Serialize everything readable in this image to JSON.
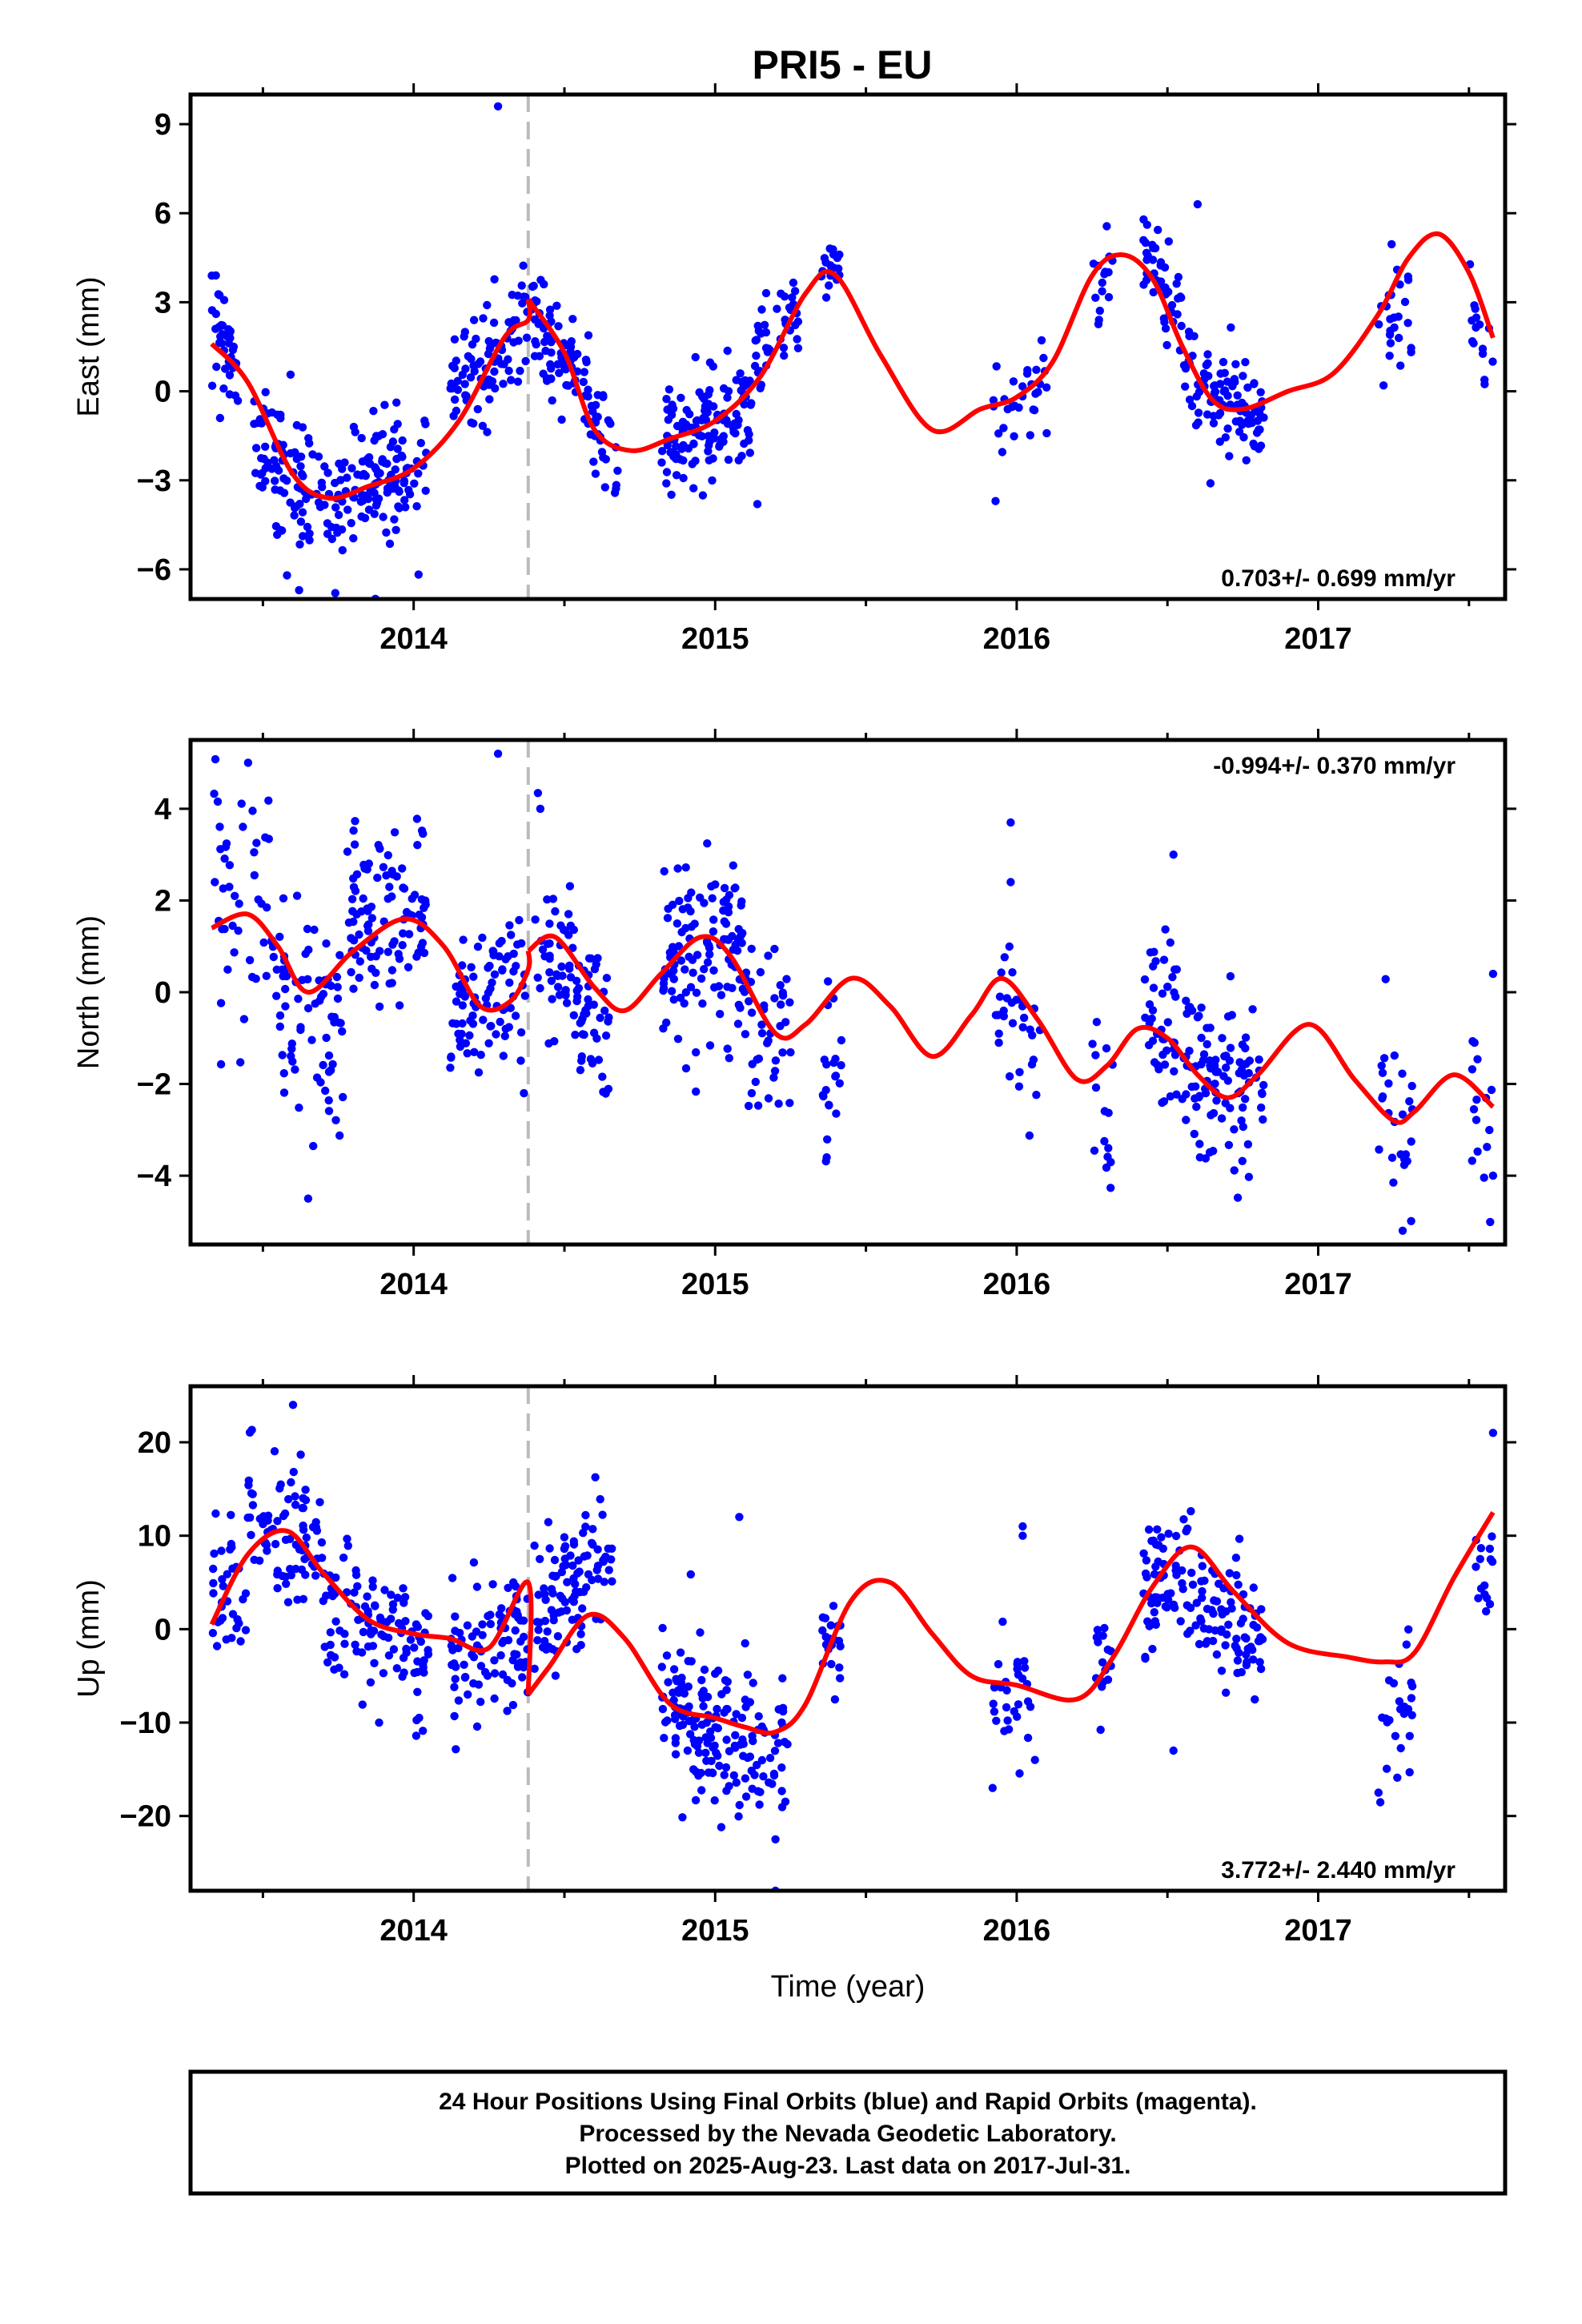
{
  "title": "PRI5 - EU",
  "footer": {
    "line1": "24 Hour Positions Using Final Orbits (blue) and Rapid Orbits (magenta).",
    "line2": "Processed by the Nevada Geodetic Laboratory.",
    "line3": "Plotted on 2025-Aug-23. Last data on 2017-Jul-31."
  },
  "colors": {
    "final_orbits": "#0000ff",
    "model": "#ff0000",
    "event_line": "#bbbbbb"
  },
  "chart_data": [
    {
      "type": "scatter",
      "ylabel": "East (mm)",
      "rate_label": "0.703+/- 0.699 mm/yr",
      "rate_position": "bottom-right",
      "xlim": [
        2013.26,
        2017.62
      ],
      "ylim": [
        -7.0,
        10.0
      ],
      "yticks": [
        9,
        6,
        3,
        0,
        -3,
        -6
      ],
      "xticks": [
        2014,
        2015,
        2016,
        2017
      ],
      "x_tick_labels": [
        "2014",
        "2015",
        "2016",
        "2017"
      ],
      "y_tick_labels": [
        "9",
        "6",
        "3",
        "0",
        "−3",
        "−6"
      ],
      "event_line_x": 2014.38,
      "model": {
        "x": [
          2013.33,
          2013.45,
          2013.6,
          2013.72,
          2013.85,
          2014.0,
          2014.15,
          2014.3,
          2014.38,
          2014.38,
          2014.5,
          2014.6,
          2014.72,
          2014.85,
          2015.0,
          2015.15,
          2015.3,
          2015.4,
          2015.55,
          2015.72,
          2015.88,
          2016.0,
          2016.12,
          2016.25,
          2016.35,
          2016.45,
          2016.55,
          2016.65,
          2016.75,
          2016.9,
          2017.05,
          2017.2,
          2017.3,
          2017.4,
          2017.5,
          2017.58
        ],
        "y": [
          1.6,
          0.3,
          -2.8,
          -3.6,
          -3.2,
          -2.6,
          -1.0,
          1.8,
          2.4,
          3.1,
          1.3,
          -1.3,
          -2.0,
          -1.6,
          -1.0,
          0.5,
          3.3,
          3.9,
          1.2,
          -1.3,
          -0.6,
          -0.2,
          1.0,
          3.9,
          4.6,
          3.8,
          1.5,
          -0.3,
          -0.6,
          0.0,
          0.6,
          2.6,
          4.5,
          5.3,
          4.0,
          1.8
        ]
      },
      "clusters": [
        {
          "x0": 2013.33,
          "x1": 2013.42,
          "y0": 3.0,
          "y1": 0.3,
          "s": 1.0,
          "n": 40
        },
        {
          "x0": 2013.47,
          "x1": 2013.68,
          "y0": -1.5,
          "y1": -3.6,
          "s": 1.1,
          "n": 80
        },
        {
          "x0": 2013.68,
          "x1": 2013.95,
          "y0": -3.6,
          "y1": -2.7,
          "s": 1.0,
          "n": 110
        },
        {
          "x0": 2013.95,
          "x1": 2014.05,
          "y0": -2.6,
          "y1": -2.3,
          "s": 0.9,
          "n": 30
        },
        {
          "x0": 2014.12,
          "x1": 2014.38,
          "y0": 0.0,
          "y1": 2.2,
          "s": 0.9,
          "n": 90
        },
        {
          "x0": 2014.39,
          "x1": 2014.58,
          "y0": 2.8,
          "y1": 0.0,
          "s": 0.9,
          "n": 80
        },
        {
          "x0": 2014.58,
          "x1": 2014.68,
          "y0": -1.0,
          "y1": -2.2,
          "s": 0.8,
          "n": 30
        },
        {
          "x0": 2014.82,
          "x1": 2015.12,
          "y0": -1.8,
          "y1": -0.6,
          "s": 0.9,
          "n": 130
        },
        {
          "x0": 2015.12,
          "x1": 2015.28,
          "y0": 1.0,
          "y1": 3.2,
          "s": 0.8,
          "n": 40
        },
        {
          "x0": 2015.35,
          "x1": 2015.42,
          "y0": 4.2,
          "y1": 4.0,
          "s": 0.6,
          "n": 20
        },
        {
          "x0": 2015.92,
          "x1": 2016.1,
          "y0": -1.0,
          "y1": 0.5,
          "s": 0.9,
          "n": 30
        },
        {
          "x0": 2016.25,
          "x1": 2016.32,
          "y0": 3.4,
          "y1": 4.2,
          "s": 0.8,
          "n": 15
        },
        {
          "x0": 2016.42,
          "x1": 2016.55,
          "y0": 5.0,
          "y1": 2.5,
          "s": 0.8,
          "n": 45
        },
        {
          "x0": 2016.55,
          "x1": 2016.82,
          "y0": 0.5,
          "y1": -1.0,
          "s": 0.8,
          "n": 100
        },
        {
          "x0": 2017.2,
          "x1": 2017.32,
          "y0": 2.0,
          "y1": 3.5,
          "s": 0.8,
          "n": 25
        },
        {
          "x0": 2017.5,
          "x1": 2017.58,
          "y0": 3.5,
          "y1": 0.8,
          "s": 0.8,
          "n": 15
        }
      ],
      "extra_points": [
        [
          2014.28,
          9.6
        ],
        [
          2013.62,
          -6.7
        ],
        [
          2013.58,
          -6.2
        ],
        [
          2013.74,
          -6.8
        ],
        [
          2015.93,
          -3.7
        ],
        [
          2015.14,
          -3.8
        ],
        [
          2016.6,
          6.3
        ]
      ]
    },
    {
      "type": "scatter",
      "ylabel": "North (mm)",
      "rate_label": "-0.994+/- 0.370 mm/yr",
      "rate_position": "top-right",
      "xlim": [
        2013.26,
        2017.62
      ],
      "ylim": [
        -5.5,
        5.5
      ],
      "yticks": [
        4,
        2,
        0,
        -2,
        -4
      ],
      "xticks": [
        2014,
        2015,
        2016,
        2017
      ],
      "x_tick_labels": [
        "2014",
        "2015",
        "2016",
        "2017"
      ],
      "y_tick_labels": [
        "4",
        "2",
        "0",
        "−2",
        "−4"
      ],
      "event_line_x": 2014.38,
      "model": {
        "x": [
          2013.33,
          2013.45,
          2013.55,
          2013.65,
          2013.8,
          2013.97,
          2014.1,
          2014.22,
          2014.32,
          2014.38,
          2014.38,
          2014.47,
          2014.6,
          2014.7,
          2014.82,
          2014.95,
          2015.05,
          2015.2,
          2015.3,
          2015.45,
          2015.58,
          2015.72,
          2015.85,
          2015.95,
          2016.07,
          2016.2,
          2016.3,
          2016.4,
          2016.5,
          2016.6,
          2016.7,
          2016.8,
          2016.97,
          2017.12,
          2017.25,
          2017.32,
          2017.45,
          2017.58
        ],
        "y": [
          1.4,
          1.7,
          1.0,
          0.0,
          0.9,
          1.6,
          1.0,
          -0.3,
          -0.2,
          0.5,
          0.9,
          1.2,
          0.1,
          -0.4,
          0.4,
          1.2,
          0.8,
          -0.9,
          -0.7,
          0.3,
          -0.3,
          -1.4,
          -0.5,
          0.3,
          -0.6,
          -1.9,
          -1.6,
          -0.8,
          -1.0,
          -1.8,
          -2.3,
          -1.8,
          -0.7,
          -1.9,
          -2.8,
          -2.6,
          -1.8,
          -2.5
        ]
      },
      "clusters": [
        {
          "x0": 2013.33,
          "x1": 2013.55,
          "y0": 2.2,
          "y1": 1.0,
          "s": 1.2,
          "n": 50
        },
        {
          "x0": 2013.55,
          "x1": 2013.78,
          "y0": 0.0,
          "y1": -1.2,
          "s": 1.3,
          "n": 70
        },
        {
          "x0": 2013.78,
          "x1": 2014.05,
          "y0": 1.5,
          "y1": 1.8,
          "s": 0.9,
          "n": 100
        },
        {
          "x0": 2014.12,
          "x1": 2014.38,
          "y0": -0.5,
          "y1": 0.2,
          "s": 0.9,
          "n": 90
        },
        {
          "x0": 2014.4,
          "x1": 2014.65,
          "y0": 1.0,
          "y1": -0.8,
          "s": 1.0,
          "n": 90
        },
        {
          "x0": 2014.82,
          "x1": 2015.1,
          "y0": 1.0,
          "y1": 0.9,
          "s": 1.0,
          "n": 120
        },
        {
          "x0": 2015.1,
          "x1": 2015.25,
          "y0": -1.0,
          "y1": -0.5,
          "s": 1.0,
          "n": 40
        },
        {
          "x0": 2015.35,
          "x1": 2015.42,
          "y0": -1.5,
          "y1": -1.8,
          "s": 1.0,
          "n": 20
        },
        {
          "x0": 2015.92,
          "x1": 2016.08,
          "y0": -0.3,
          "y1": -1.2,
          "s": 0.8,
          "n": 30
        },
        {
          "x0": 2016.25,
          "x1": 2016.32,
          "y0": -2.0,
          "y1": -2.8,
          "s": 0.9,
          "n": 15
        },
        {
          "x0": 2016.42,
          "x1": 2016.55,
          "y0": 0.0,
          "y1": -1.2,
          "s": 0.9,
          "n": 45
        },
        {
          "x0": 2016.55,
          "x1": 2016.82,
          "y0": -1.3,
          "y1": -2.3,
          "s": 0.9,
          "n": 100
        },
        {
          "x0": 2017.2,
          "x1": 2017.32,
          "y0": -2.5,
          "y1": -3.0,
          "s": 0.9,
          "n": 25
        },
        {
          "x0": 2017.5,
          "x1": 2017.58,
          "y0": -1.5,
          "y1": -2.2,
          "s": 0.9,
          "n": 15
        }
      ],
      "extra_points": [
        [
          2014.28,
          5.2
        ],
        [
          2013.65,
          -4.5
        ],
        [
          2014.42,
          4.0
        ],
        [
          2015.98,
          3.7
        ],
        [
          2015.98,
          2.4
        ],
        [
          2016.52,
          3.0
        ],
        [
          2017.28,
          -5.2
        ],
        [
          2017.58,
          0.4
        ],
        [
          2017.58,
          -4.0
        ],
        [
          2015.37,
          -3.6
        ]
      ]
    },
    {
      "type": "scatter",
      "ylabel": "Up (mm)",
      "xlabel": "Time (year)",
      "rate_label": "3.772+/- 2.440 mm/yr",
      "rate_position": "bottom-right",
      "xlim": [
        2013.26,
        2017.62
      ],
      "ylim": [
        -28.0,
        26.0
      ],
      "yticks": [
        20,
        10,
        0,
        -10,
        -20
      ],
      "xticks": [
        2014,
        2015,
        2016,
        2017
      ],
      "x_tick_labels": [
        "2014",
        "2015",
        "2016",
        "2017"
      ],
      "y_tick_labels": [
        "20",
        "10",
        "0",
        "−10",
        "−20"
      ],
      "event_line_x": 2014.38,
      "model": {
        "x": [
          2013.33,
          2013.45,
          2013.58,
          2013.7,
          2013.85,
          2014.0,
          2014.12,
          2014.25,
          2014.38,
          2014.38,
          2014.45,
          2014.58,
          2014.7,
          2014.85,
          2015.0,
          2015.1,
          2015.2,
          2015.3,
          2015.45,
          2015.58,
          2015.72,
          2015.85,
          2016.0,
          2016.2,
          2016.32,
          2016.45,
          2016.58,
          2016.72,
          2016.9,
          2017.1,
          2017.22,
          2017.32,
          2017.45,
          2017.58
        ],
        "y": [
          0.5,
          8.0,
          10.5,
          6.0,
          1.0,
          -0.5,
          -1.0,
          -2.0,
          5.0,
          -7.0,
          -4.0,
          1.5,
          -1.0,
          -8.0,
          -9.5,
          -10.5,
          -11.0,
          -8.0,
          3.0,
          5.0,
          -0.5,
          -5.0,
          -6.0,
          -7.5,
          -3.0,
          4.5,
          8.8,
          4.0,
          -1.5,
          -3.0,
          -3.5,
          -2.5,
          5.5,
          12.5
        ]
      },
      "clusters": [
        {
          "x0": 2013.33,
          "x1": 2013.45,
          "y0": 3.0,
          "y1": 6.0,
          "s": 3.5,
          "n": 35
        },
        {
          "x0": 2013.45,
          "x1": 2013.7,
          "y0": 12.0,
          "y1": 8.0,
          "s": 4.0,
          "n": 80
        },
        {
          "x0": 2013.7,
          "x1": 2014.05,
          "y0": 2.0,
          "y1": -3.0,
          "s": 3.5,
          "n": 110
        },
        {
          "x0": 2014.12,
          "x1": 2014.38,
          "y0": -3.0,
          "y1": 0.0,
          "s": 3.5,
          "n": 90
        },
        {
          "x0": 2014.4,
          "x1": 2014.66,
          "y0": 2.0,
          "y1": 8.0,
          "s": 4.0,
          "n": 100
        },
        {
          "x0": 2014.82,
          "x1": 2015.05,
          "y0": -7.0,
          "y1": -12.0,
          "s": 4.0,
          "n": 110
        },
        {
          "x0": 2015.05,
          "x1": 2015.25,
          "y0": -12.0,
          "y1": -14.0,
          "s": 4.0,
          "n": 60
        },
        {
          "x0": 2015.35,
          "x1": 2015.42,
          "y0": -2.0,
          "y1": -4.0,
          "s": 3.0,
          "n": 20
        },
        {
          "x0": 2015.92,
          "x1": 2016.08,
          "y0": -6.0,
          "y1": -10.0,
          "s": 4.0,
          "n": 30
        },
        {
          "x0": 2016.25,
          "x1": 2016.32,
          "y0": -4.0,
          "y1": -3.0,
          "s": 3.5,
          "n": 15
        },
        {
          "x0": 2016.42,
          "x1": 2016.58,
          "y0": 4.0,
          "y1": 6.0,
          "s": 3.5,
          "n": 60
        },
        {
          "x0": 2016.58,
          "x1": 2016.82,
          "y0": 3.0,
          "y1": -2.0,
          "s": 3.5,
          "n": 80
        },
        {
          "x0": 2017.2,
          "x1": 2017.32,
          "y0": -8.0,
          "y1": -7.0,
          "s": 4.0,
          "n": 25
        },
        {
          "x0": 2017.5,
          "x1": 2017.58,
          "y0": 5.0,
          "y1": 8.0,
          "s": 3.0,
          "n": 15
        }
      ],
      "extra_points": [
        [
          2013.6,
          24.0
        ],
        [
          2015.2,
          -28.0
        ],
        [
          2015.08,
          12.0
        ],
        [
          2016.02,
          11.0
        ],
        [
          2016.02,
          10.0
        ],
        [
          2017.58,
          21.0
        ],
        [
          2015.92,
          -17.0
        ],
        [
          2017.2,
          -17.5
        ],
        [
          2016.52,
          -13.0
        ],
        [
          2015.2,
          -22.5
        ]
      ]
    }
  ]
}
